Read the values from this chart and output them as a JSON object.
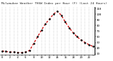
{
  "hours": [
    0,
    1,
    2,
    3,
    4,
    5,
    6,
    7,
    8,
    9,
    10,
    11,
    12,
    13,
    14,
    15,
    16,
    17,
    18,
    19,
    20,
    21,
    22,
    23
  ],
  "values": [
    35,
    34,
    33,
    33,
    32,
    32,
    33,
    36,
    48,
    60,
    72,
    83,
    91,
    100,
    105,
    98,
    86,
    76,
    67,
    60,
    54,
    50,
    46,
    43
  ],
  "line_color": "#cc0000",
  "marker_color": "#111111",
  "background_color": "#ffffff",
  "grid_color": "#999999",
  "title": "Milwaukee Weather THSW Index per Hour (F) (Last 24 Hours)",
  "ylim": [
    28,
    112
  ],
  "yticks": [
    30,
    40,
    50,
    60,
    70,
    80,
    90,
    100,
    110
  ],
  "xlim": [
    -0.5,
    23.5
  ],
  "xticks": [
    0,
    1,
    2,
    3,
    4,
    5,
    6,
    7,
    8,
    9,
    10,
    11,
    12,
    13,
    14,
    15,
    16,
    17,
    18,
    19,
    20,
    21,
    22,
    23
  ],
  "title_fontsize": 3.2,
  "tick_fontsize": 2.8
}
